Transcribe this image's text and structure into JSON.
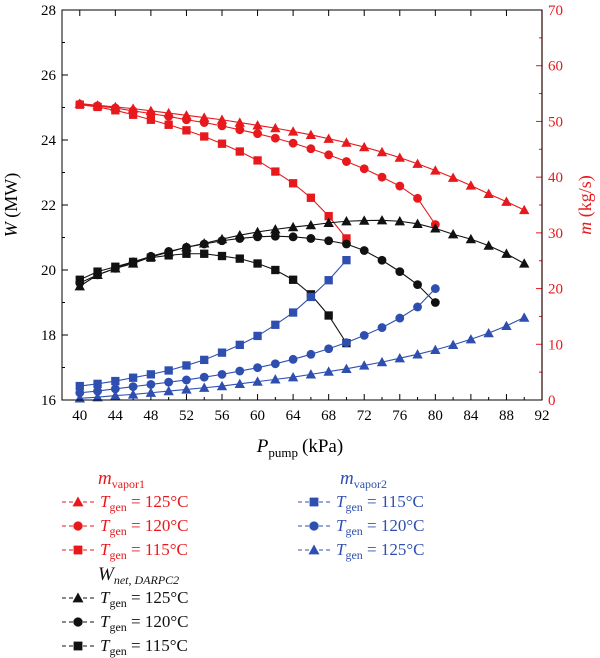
{
  "chart_data": {
    "type": "line",
    "xlabel": "P",
    "xlabel_sub": "pump",
    "xlabel_unit": "(kPa)",
    "ylabel_left": "W (MW)",
    "ylabel_right": "m (kg/s)",
    "xlim": [
      38,
      92
    ],
    "ylim_left": [
      16,
      28
    ],
    "ylim_right": [
      0,
      70
    ],
    "x_ticks": [
      "40",
      "44",
      "48",
      "52",
      "56",
      "60",
      "64",
      "68",
      "72",
      "76",
      "80",
      "84",
      "88",
      "92"
    ],
    "y_left_ticks": [
      "16",
      "18",
      "20",
      "22",
      "24",
      "26",
      "28"
    ],
    "y_right_ticks": [
      "0",
      "10",
      "20",
      "30",
      "40",
      "50",
      "60",
      "70"
    ],
    "colors": {
      "red": "#e8191c",
      "black": "#111111",
      "blue": "#2f4fb0"
    },
    "series": [
      {
        "name": "m_vapor1, T_gen = 125°C",
        "axis": "right",
        "color": "red",
        "marker": "triangle",
        "x": [
          40,
          42,
          44,
          46,
          48,
          50,
          52,
          54,
          56,
          58,
          60,
          62,
          64,
          66,
          68,
          70,
          72,
          74,
          76,
          78,
          80,
          82,
          84,
          86,
          88,
          90
        ],
        "y": [
          53.2,
          52.9,
          52.6,
          52.3,
          51.9,
          51.5,
          51.1,
          50.7,
          50.3,
          49.8,
          49.3,
          48.8,
          48.2,
          47.6,
          46.9,
          46.2,
          45.4,
          44.5,
          43.5,
          42.4,
          41.2,
          39.9,
          38.5,
          37.0,
          35.6,
          34.1
        ]
      },
      {
        "name": "m_vapor1, T_gen = 120°C",
        "axis": "right",
        "color": "red",
        "marker": "circle",
        "x": [
          40,
          42,
          44,
          46,
          48,
          50,
          52,
          54,
          56,
          58,
          60,
          62,
          64,
          66,
          68,
          70,
          72,
          74,
          76,
          78,
          80
        ],
        "y": [
          53.1,
          52.8,
          52.4,
          51.9,
          51.4,
          50.9,
          50.3,
          49.8,
          49.2,
          48.5,
          47.8,
          47.0,
          46.1,
          45.1,
          44.0,
          42.8,
          41.5,
          40.0,
          38.4,
          36.2,
          31.5
        ]
      },
      {
        "name": "m_vapor1, T_gen = 115°C",
        "axis": "right",
        "color": "red",
        "marker": "square",
        "x": [
          40,
          42,
          44,
          46,
          48,
          50,
          52,
          54,
          56,
          58,
          60,
          62,
          64,
          66,
          68,
          70
        ],
        "y": [
          53.0,
          52.6,
          52.0,
          51.2,
          50.3,
          49.4,
          48.4,
          47.3,
          46.0,
          44.6,
          43.0,
          41.0,
          38.9,
          36.3,
          33.0,
          29.0
        ]
      },
      {
        "name": "W_net,DARPC2, T_gen = 125°C",
        "axis": "left",
        "color": "black",
        "marker": "triangle",
        "x": [
          40,
          42,
          44,
          46,
          48,
          50,
          52,
          54,
          56,
          58,
          60,
          62,
          64,
          66,
          68,
          70,
          72,
          74,
          76,
          78,
          80,
          82,
          84,
          86,
          88,
          90
        ],
        "y": [
          19.5,
          19.85,
          20.05,
          20.2,
          20.4,
          20.55,
          20.7,
          20.82,
          20.95,
          21.07,
          21.17,
          21.25,
          21.32,
          21.38,
          21.45,
          21.5,
          21.52,
          21.53,
          21.5,
          21.42,
          21.28,
          21.1,
          20.95,
          20.75,
          20.5,
          20.2
        ]
      },
      {
        "name": "W_net,DARPC2, T_gen = 120°C",
        "axis": "left",
        "color": "black",
        "marker": "circle",
        "x": [
          40,
          42,
          44,
          46,
          48,
          50,
          52,
          54,
          56,
          58,
          60,
          62,
          64,
          66,
          68,
          70,
          72,
          74,
          76,
          78,
          80
        ],
        "y": [
          19.6,
          19.85,
          20.05,
          20.25,
          20.42,
          20.57,
          20.7,
          20.8,
          20.9,
          20.97,
          21.02,
          21.04,
          21.02,
          20.97,
          20.9,
          20.8,
          20.6,
          20.3,
          19.95,
          19.55,
          19.0
        ]
      },
      {
        "name": "W_net,DARPC2, T_gen = 115°C",
        "axis": "left",
        "color": "black",
        "marker": "square",
        "x": [
          40,
          42,
          44,
          46,
          48,
          50,
          52,
          54,
          56,
          58,
          60,
          62,
          64,
          66,
          68,
          70
        ],
        "y": [
          19.7,
          19.95,
          20.1,
          20.25,
          20.38,
          20.45,
          20.5,
          20.5,
          20.43,
          20.35,
          20.2,
          20.0,
          19.7,
          19.25,
          18.6,
          17.75
        ]
      },
      {
        "name": "m_vapor2, T_gen = 115°C",
        "axis": "right",
        "color": "blue",
        "marker": "square",
        "x": [
          40,
          42,
          44,
          46,
          48,
          50,
          52,
          54,
          56,
          58,
          60,
          62,
          64,
          66,
          68,
          70
        ],
        "y": [
          2.5,
          2.9,
          3.4,
          4.0,
          4.6,
          5.3,
          6.2,
          7.2,
          8.5,
          9.9,
          11.5,
          13.5,
          15.7,
          18.5,
          21.5,
          25.1
        ]
      },
      {
        "name": "m_vapor2, T_gen = 120°C",
        "axis": "right",
        "color": "blue",
        "marker": "circle",
        "x": [
          40,
          42,
          44,
          46,
          48,
          50,
          52,
          54,
          56,
          58,
          60,
          62,
          64,
          66,
          68,
          70,
          72,
          74,
          76,
          78,
          80
        ],
        "y": [
          1.3,
          1.6,
          2.0,
          2.4,
          2.8,
          3.2,
          3.6,
          4.1,
          4.6,
          5.2,
          5.8,
          6.5,
          7.3,
          8.2,
          9.2,
          10.3,
          11.6,
          13.0,
          14.7,
          16.7,
          20.0
        ]
      },
      {
        "name": "m_vapor2, T_gen = 125°C",
        "axis": "right",
        "color": "blue",
        "marker": "triangle",
        "x": [
          40,
          42,
          44,
          46,
          48,
          50,
          52,
          54,
          56,
          58,
          60,
          62,
          64,
          66,
          68,
          70,
          72,
          74,
          76,
          78,
          80,
          82,
          84,
          86,
          88,
          90
        ],
        "y": [
          0.3,
          0.5,
          0.8,
          1.0,
          1.3,
          1.6,
          1.9,
          2.2,
          2.5,
          2.9,
          3.3,
          3.7,
          4.1,
          4.6,
          5.1,
          5.6,
          6.2,
          6.8,
          7.5,
          8.2,
          9.0,
          9.9,
          10.9,
          12.0,
          13.3,
          14.8
        ]
      }
    ]
  },
  "legend": {
    "group1": {
      "title": "m",
      "title_sub": "vapor1",
      "color": "red",
      "items": [
        {
          "marker": "triangle",
          "var": "T",
          "sub": "gen",
          "value": " = 125°C"
        },
        {
          "marker": "circle",
          "var": "T",
          "sub": "gen",
          "value": " = 120°C"
        },
        {
          "marker": "square",
          "var": "T",
          "sub": "gen",
          "value": " = 115°C"
        }
      ]
    },
    "group2": {
      "title": "m",
      "title_sub": "vapor2",
      "color": "blue",
      "items": [
        {
          "marker": "square",
          "var": "T",
          "sub": "gen",
          "value": " = 115°C"
        },
        {
          "marker": "circle",
          "var": "T",
          "sub": "gen",
          "value": " = 120°C"
        },
        {
          "marker": "triangle",
          "var": "T",
          "sub": "gen",
          "value": " = 125°C"
        }
      ]
    },
    "group3": {
      "title": "W",
      "title_sub": "net, DARPC2",
      "color": "black",
      "items": [
        {
          "marker": "triangle",
          "var": "T",
          "sub": "gen",
          "value": " = 125°C"
        },
        {
          "marker": "circle",
          "var": "T",
          "sub": "gen",
          "value": " = 120°C"
        },
        {
          "marker": "square",
          "var": "T",
          "sub": "gen",
          "value": " = 115°C"
        }
      ]
    }
  }
}
